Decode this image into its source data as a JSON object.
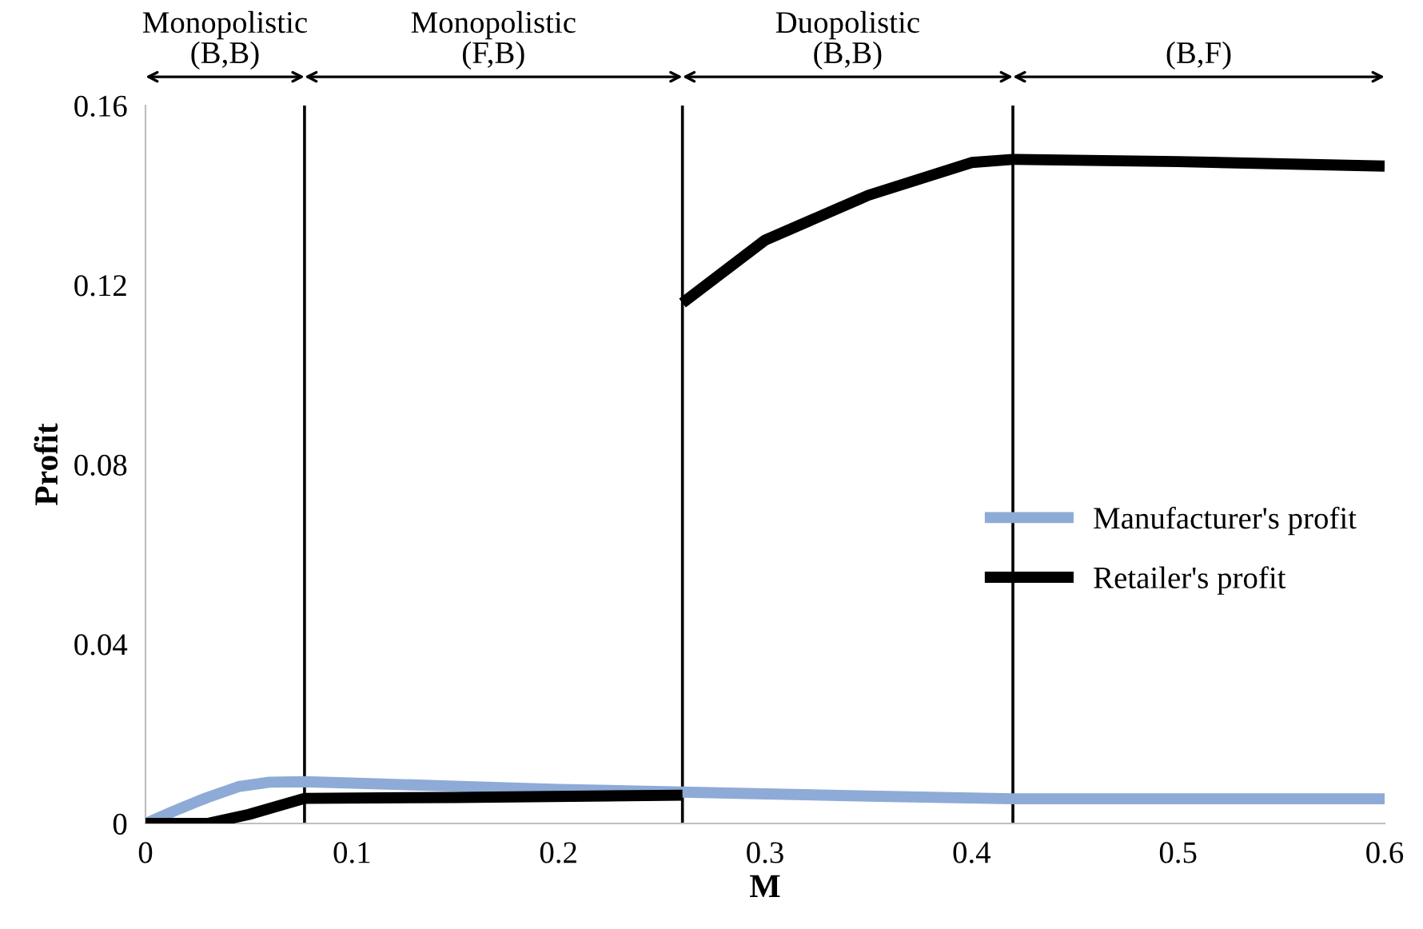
{
  "chart_data": {
    "type": "line",
    "xlabel": "M",
    "ylabel": "Profit",
    "xlim": [
      0,
      0.6
    ],
    "xticks": [
      0,
      0.1,
      0.2,
      0.3,
      0.4,
      0.5,
      0.6
    ],
    "ylim": [
      0,
      0.16
    ],
    "yticks": [
      0,
      0.04,
      0.08,
      0.12,
      0.16
    ],
    "grid": false,
    "legend": "right",
    "line_style": "solid",
    "marker": "none",
    "series": [
      {
        "name": "Manufacturer's profit",
        "color": "#8eabd7",
        "x": [
          0,
          0.015,
          0.03,
          0.045,
          0.06,
          0.077,
          0.1,
          0.15,
          0.2,
          0.26,
          0.3,
          0.35,
          0.42,
          0.5,
          0.6
        ],
        "values": [
          0,
          0.003,
          0.0058,
          0.0082,
          0.0092,
          0.0093,
          0.009,
          0.0083,
          0.0076,
          0.007,
          0.0066,
          0.0061,
          0.0055,
          0.0055,
          0.0055
        ]
      },
      {
        "name": "Retailer's profit",
        "color": "#000000",
        "x": [
          0,
          0.03,
          0.05,
          0.077,
          0.15,
          0.26
        ],
        "values": [
          0,
          0,
          0.002,
          0.0056,
          0.0058,
          0.0063
        ]
      },
      {
        "color": "#000000",
        "x": [
          0.26,
          0.3,
          0.35,
          0.4,
          0.42,
          0.5,
          0.6
        ],
        "values": [
          0.116,
          0.13,
          0.14,
          0.1473,
          0.148,
          0.1475,
          0.1465
        ]
      }
    ],
    "ref_lines": [
      {
        "axis": "x",
        "value": 0.077,
        "color": "#000000"
      },
      {
        "axis": "x",
        "value": 0.26,
        "color": "#000000"
      },
      {
        "axis": "x",
        "value": 0.42,
        "color": "#000000"
      }
    ],
    "annotations": [
      "Monopolistic\n(B,B)",
      "Monopolistic\n(F,B)",
      "Duopolistic\n(B,B)",
      "(B,F)"
    ]
  }
}
